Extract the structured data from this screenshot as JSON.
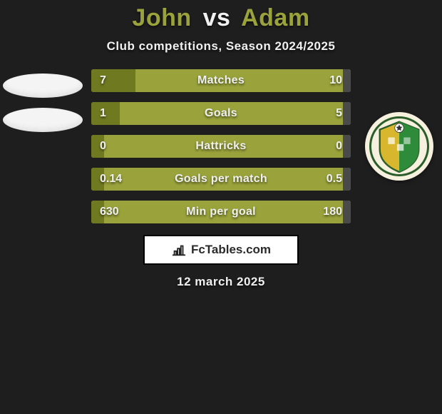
{
  "colors": {
    "background": "#1e1e1e",
    "accent": "#9aa33b",
    "accent_dark": "#6f7a20",
    "text_light": "#f0f0f0",
    "text_dark": "#2a2a2a",
    "ellipse": "#f4f4f4",
    "bar_track": "#9aa33b",
    "bar_left_fill": "#6f7a20",
    "bar_right_fill": "#4a4a4a",
    "watermark_bg": "#ffffff",
    "watermark_border": "#000000",
    "badge_bg": "#f6f0de",
    "badge_ring": "#2b5d2b",
    "badge_gold": "#d8b62e",
    "badge_green": "#2e8b3a"
  },
  "typography": {
    "title_fontsize": 34,
    "subtitle_fontsize": 17,
    "bar_fontsize": 16,
    "date_fontsize": 17
  },
  "header": {
    "player1": "John",
    "vs": "vs",
    "player2": "Adam",
    "subtitle": "Club competitions, Season 2024/2025"
  },
  "stats": {
    "type": "comparison-bars",
    "rows": [
      {
        "label": "Matches",
        "left_val": "7",
        "right_val": "10",
        "left_pct": 17,
        "right_pct": 3
      },
      {
        "label": "Goals",
        "left_val": "1",
        "right_val": "5",
        "left_pct": 11,
        "right_pct": 3
      },
      {
        "label": "Hattricks",
        "left_val": "0",
        "right_val": "0",
        "left_pct": 5,
        "right_pct": 3
      },
      {
        "label": "Goals per match",
        "left_val": "0.14",
        "right_val": "0.5",
        "left_pct": 5,
        "right_pct": 3
      },
      {
        "label": "Min per goal",
        "left_val": "630",
        "right_val": "180",
        "left_pct": 5,
        "right_pct": 3
      }
    ]
  },
  "watermark": {
    "icon": "chart-icon",
    "text": "FcTables.com"
  },
  "date": "12 march 2025"
}
